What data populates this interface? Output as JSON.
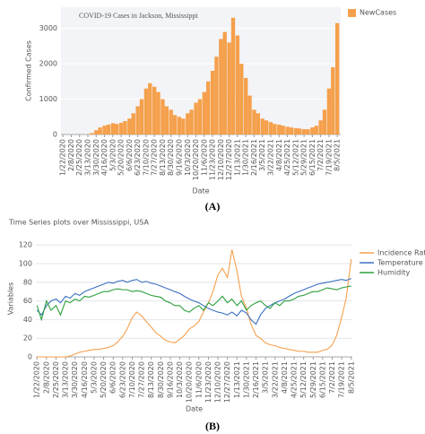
{
  "chart_data": [
    {
      "type": "bar",
      "title": "COVID-19 Cases in Jackson, Mississippi",
      "x_label": "Date",
      "y_label": "Confirmed Cases",
      "caption": "(A)",
      "legend": "top-right",
      "series": [
        {
          "name": "NewCases",
          "color": "#f5a04c",
          "values": [
            0,
            0,
            0,
            0,
            0,
            0,
            5,
            40,
            120,
            200,
            250,
            280,
            320,
            300,
            330,
            380,
            450,
            600,
            800,
            1000,
            1300,
            1450,
            1350,
            1200,
            1000,
            800,
            700,
            550,
            500,
            450,
            600,
            700,
            900,
            1000,
            1200,
            1500,
            1800,
            2200,
            2700,
            2900,
            2600,
            3300,
            2800,
            2000,
            1600,
            1100,
            700,
            600,
            450,
            400,
            350,
            300,
            280,
            250,
            220,
            200,
            180,
            170,
            150,
            150,
            200,
            250,
            400,
            700,
            1300,
            1900,
            3150
          ]
        }
      ],
      "x": [
        "1/22/2020",
        "1/30/2020",
        "2/8/2020",
        "2/16/2020",
        "2/25/2020",
        "3/4/2020",
        "3/13/2020",
        "3/21/2020",
        "3/30/2020",
        "4/7/2020",
        "4/16/2020",
        "4/24/2020",
        "5/3/2020",
        "5/11/2020",
        "5/20/2020",
        "5/28/2020",
        "6/6/2020",
        "6/14/2020",
        "6/23/2020",
        "7/1/2020",
        "7/10/2020",
        "7/18/2020",
        "7/27/2020",
        "8/4/2020",
        "8/13/2020",
        "8/21/2020",
        "8/30/2020",
        "9/7/2020",
        "9/16/2020",
        "9/24/2020",
        "10/3/2020",
        "10/11/2020",
        "10/20/2020",
        "10/28/2020",
        "11/6/2020",
        "11/14/2020",
        "11/23/2020",
        "12/1/2020",
        "12/10/2020",
        "12/18/2020",
        "12/27/2020",
        "1/4/2021",
        "1/13/2021",
        "1/21/2021",
        "1/30/2021",
        "2/7/2021",
        "2/16/2021",
        "2/24/2021",
        "3/5/2021",
        "3/13/2021",
        "3/22/2021",
        "3/30/2021",
        "4/8/2021",
        "4/16/2021",
        "4/25/2021",
        "5/3/2021",
        "5/12/2021",
        "5/20/2021",
        "5/29/2021",
        "6/6/2021",
        "6/15/2021",
        "6/23/2021",
        "7/2/2021",
        "7/10/2021",
        "7/19/2021",
        "7/27/2021",
        "8/5/2021"
      ],
      "xlim": [
        "1/18/2020",
        "8/12/2021"
      ],
      "xticks": [
        "1/22/2020",
        "2/8/2020",
        "2/25/2020",
        "3/13/2020",
        "3/30/2020",
        "4/16/2020",
        "5/3/2020",
        "5/20/2020",
        "6/6/2020",
        "6/23/2020",
        "7/10/2020",
        "7/27/2020",
        "8/13/2020",
        "8/30/2020",
        "9/16/2020",
        "10/3/2020",
        "10/20/2020",
        "11/6/2020",
        "11/23/2020",
        "12/10/2020",
        "12/27/2020",
        "1/13/2021",
        "1/30/2021",
        "2/16/2021",
        "3/5/2021",
        "3/22/2021",
        "4/8/2021",
        "4/25/2021",
        "5/12/2021",
        "5/29/2021",
        "6/15/2021",
        "7/2/2021",
        "7/19/2021",
        "8/5/2021"
      ],
      "ylim": [
        0,
        3600
      ],
      "yticks": [
        0,
        1000,
        2000,
        3000
      ],
      "grid": true
    },
    {
      "type": "line",
      "title": "Time Series plots over Mississippi, USA",
      "x_label": "Date",
      "y_label": "Variables",
      "caption": "(B)",
      "legend": "top-right",
      "series": [
        {
          "name": "Incidence Rate",
          "color": "#f5a04c",
          "values": [
            0,
            0,
            0,
            0,
            0,
            0,
            0,
            1,
            3,
            5,
            6,
            7,
            8,
            8,
            9,
            10,
            12,
            16,
            22,
            30,
            42,
            48,
            44,
            38,
            32,
            26,
            22,
            18,
            16,
            15,
            19,
            23,
            30,
            33,
            38,
            48,
            58,
            70,
            88,
            95,
            85,
            115,
            92,
            65,
            52,
            35,
            23,
            20,
            15,
            13,
            12,
            10,
            9,
            8,
            7,
            6,
            6,
            5,
            5,
            5,
            7,
            8,
            13,
            23,
            43,
            63,
            105
          ]
        },
        {
          "name": "Temperature",
          "color": "#3b6fc2",
          "values": [
            50,
            45,
            55,
            60,
            62,
            58,
            65,
            63,
            68,
            66,
            70,
            72,
            74,
            76,
            78,
            80,
            79,
            81,
            82,
            80,
            82,
            83,
            80,
            81,
            79,
            78,
            76,
            74,
            72,
            70,
            68,
            65,
            62,
            60,
            58,
            55,
            52,
            50,
            48,
            47,
            45,
            48,
            44,
            50,
            47,
            40,
            35,
            45,
            52,
            55,
            58,
            60,
            62,
            65,
            68,
            70,
            72,
            74,
            76,
            78,
            79,
            80,
            81,
            82,
            83,
            82,
            84
          ]
        },
        {
          "name": "Humidity",
          "color": "#2ca03c",
          "values": [
            55,
            40,
            60,
            50,
            55,
            45,
            60,
            58,
            62,
            60,
            65,
            64,
            66,
            68,
            70,
            70,
            72,
            73,
            72,
            72,
            70,
            71,
            70,
            68,
            66,
            65,
            64,
            60,
            58,
            55,
            55,
            50,
            48,
            52,
            55,
            50,
            58,
            55,
            60,
            65,
            58,
            62,
            55,
            60,
            50,
            55,
            58,
            60,
            55,
            52,
            58,
            55,
            60,
            60,
            62,
            65,
            66,
            68,
            70,
            70,
            72,
            74,
            73,
            72,
            74,
            75,
            76
          ]
        }
      ],
      "x": [
        "1/22/2020",
        "1/30/2020",
        "2/8/2020",
        "2/16/2020",
        "2/25/2020",
        "3/4/2020",
        "3/13/2020",
        "3/21/2020",
        "3/30/2020",
        "4/7/2020",
        "4/16/2020",
        "4/24/2020",
        "5/3/2020",
        "5/11/2020",
        "5/20/2020",
        "5/28/2020",
        "6/6/2020",
        "6/14/2020",
        "6/23/2020",
        "7/1/2020",
        "7/10/2020",
        "7/18/2020",
        "7/27/2020",
        "8/4/2020",
        "8/13/2020",
        "8/21/2020",
        "8/30/2020",
        "9/7/2020",
        "9/16/2020",
        "9/24/2020",
        "10/3/2020",
        "10/11/2020",
        "10/20/2020",
        "10/28/2020",
        "11/6/2020",
        "11/14/2020",
        "11/23/2020",
        "12/1/2020",
        "12/10/2020",
        "12/18/2020",
        "12/27/2020",
        "1/4/2021",
        "1/13/2021",
        "1/21/2021",
        "1/30/2021",
        "2/7/2021",
        "2/16/2021",
        "2/24/2021",
        "3/5/2021",
        "3/13/2021",
        "3/22/2021",
        "3/30/2021",
        "4/8/2021",
        "4/16/2021",
        "4/25/2021",
        "5/3/2021",
        "5/12/2021",
        "5/20/2021",
        "5/29/2021",
        "6/6/2021",
        "6/15/2021",
        "6/23/2021",
        "7/2/2021",
        "7/10/2021",
        "7/19/2021",
        "7/27/2021",
        "8/5/2021"
      ],
      "xlim": [
        "1/20/2020",
        "8/7/2021"
      ],
      "xticks": [
        "1/22/2020",
        "2/8/2020",
        "2/25/2020",
        "3/13/2020",
        "3/30/2020",
        "4/16/2020",
        "5/3/2020",
        "5/20/2020",
        "6/6/2020",
        "6/23/2020",
        "7/10/2020",
        "7/27/2020",
        "8/13/2020",
        "8/30/2020",
        "9/16/2020",
        "10/3/2020",
        "10/20/2020",
        "11/6/2020",
        "11/23/2020",
        "12/10/2020",
        "12/27/2020",
        "1/13/2021",
        "1/30/2021",
        "2/16/2021",
        "3/5/2021",
        "3/22/2021",
        "4/8/2021",
        "4/25/2021",
        "5/12/2021",
        "5/29/2021",
        "6/15/2021",
        "7/2/2021",
        "7/19/2021",
        "8/5/2021"
      ],
      "ylim": [
        0,
        125
      ],
      "yticks": [
        0,
        20,
        40,
        60,
        80,
        100,
        120
      ],
      "grid": true
    }
  ]
}
